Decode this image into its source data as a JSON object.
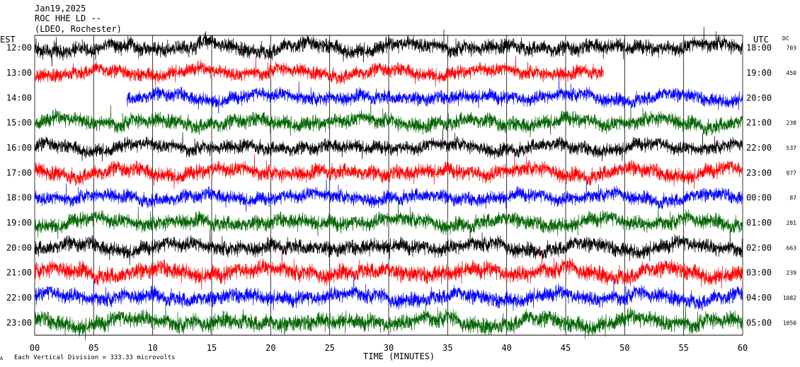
{
  "header": {
    "date": "Jan19,2025",
    "station_line": "ROC HHE LD --",
    "location_line": "(LDEO, Rochester)"
  },
  "left_tz": "EST",
  "right_tz": "UTC",
  "dc_header": "DC",
  "footer": {
    "scale_note": "Each Vertical Division =  333.33 microvolts",
    "corner_mark": "A"
  },
  "chart_data": {
    "type": "line",
    "title": "",
    "xlabel": "TIME (MINUTES)",
    "ylabel": "",
    "xlim": [
      0,
      60
    ],
    "x_ticks": [
      "00",
      "05",
      "10",
      "15",
      "20",
      "25",
      "30",
      "35",
      "40",
      "45",
      "50",
      "55",
      "60"
    ],
    "grid": "vertical lines every 5 minutes",
    "colors": [
      "#000000",
      "#ff0000",
      "#0000ff",
      "#006400"
    ],
    "series": [
      {
        "est": "12:00",
        "utc": "18:00",
        "dc": "703",
        "color": "#000000",
        "start_min": 0,
        "end_min": 60,
        "amplitude": 1.0
      },
      {
        "est": "13:00",
        "utc": "19:00",
        "dc": "450",
        "color": "#ff0000",
        "start_min": 0,
        "end_min": 48.2,
        "amplitude": 0.9
      },
      {
        "est": "14:00",
        "utc": "20:00",
        "dc": "",
        "color": "#0000ff",
        "start_min": 7.8,
        "end_min": 60,
        "amplitude": 0.9
      },
      {
        "est": "15:00",
        "utc": "21:00",
        "dc": "238",
        "color": "#006400",
        "start_min": 0,
        "end_min": 60,
        "amplitude": 1.0
      },
      {
        "est": "16:00",
        "utc": "22:00",
        "dc": "537",
        "color": "#000000",
        "start_min": 0,
        "end_min": 60,
        "amplitude": 0.9
      },
      {
        "est": "17:00",
        "utc": "23:00",
        "dc": "977",
        "color": "#ff0000",
        "start_min": 0,
        "end_min": 60,
        "amplitude": 1.0
      },
      {
        "est": "18:00",
        "utc": "00:00",
        "dc": "87",
        "color": "#0000ff",
        "start_min": 0,
        "end_min": 60,
        "amplitude": 0.9
      },
      {
        "est": "19:00",
        "utc": "01:00",
        "dc": "281",
        "color": "#006400",
        "start_min": 0,
        "end_min": 60,
        "amplitude": 1.0
      },
      {
        "est": "20:00",
        "utc": "02:00",
        "dc": "663",
        "color": "#000000",
        "start_min": 0,
        "end_min": 60,
        "amplitude": 1.0
      },
      {
        "est": "21:00",
        "utc": "03:00",
        "dc": "239",
        "color": "#ff0000",
        "start_min": 0,
        "end_min": 60,
        "amplitude": 1.1
      },
      {
        "est": "22:00",
        "utc": "04:00",
        "dc": "1082",
        "color": "#0000ff",
        "start_min": 0,
        "end_min": 60,
        "amplitude": 1.0
      },
      {
        "est": "23:00",
        "utc": "05:00",
        "dc": "1050",
        "color": "#006400",
        "start_min": 0,
        "end_min": 60,
        "amplitude": 1.1
      }
    ]
  }
}
